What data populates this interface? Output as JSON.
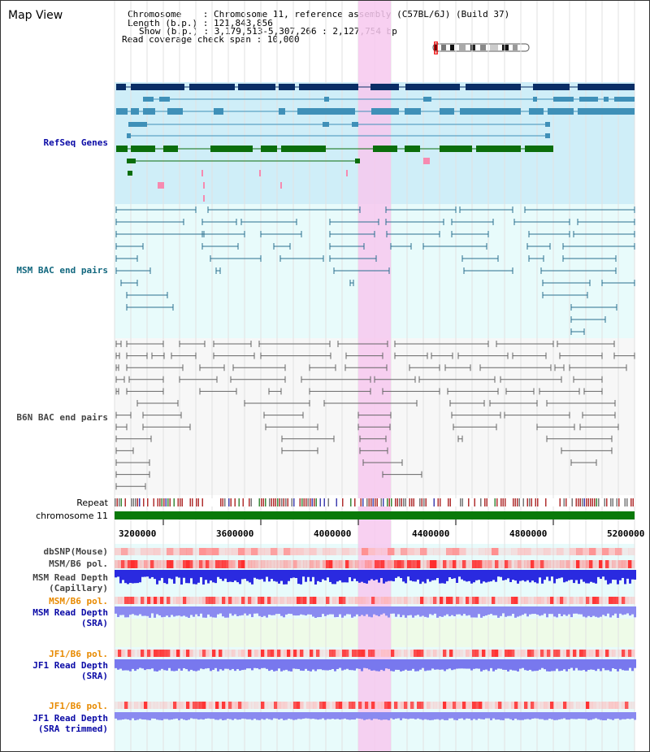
{
  "title": "Map View",
  "info": {
    "chromosome_label": "Chromosome",
    "chromosome_value": "Chromosome 11, reference assembly (C57BL/6J) (Build 37)",
    "length_label": "Length (b.p.)",
    "length_value": "121,843,856",
    "show_label": "Show (b.p.)",
    "show_value": "3,179,513-5,307,266 : 2,127,754 bp",
    "coverage_label": "Read coverage check span",
    "coverage_value": "10,000"
  },
  "tracks": {
    "refseq": "RefSeq Genes",
    "msm_bac": "MSM BAC end pairs",
    "b6n_bac": "B6N BAC end pairs",
    "repeat": "Repeat",
    "chromosome": "chromosome 11",
    "dbsnp": "dbSNP(Mouse)",
    "msm_b6_pol": "MSM/B6 pol.",
    "msm_read_depth_cap_1": "MSM Read Depth",
    "msm_read_depth_cap_2": "(Capillary)",
    "msm_b6_pol_2": "MSM/B6 pol.",
    "msm_read_depth_sra_1": "MSM Read Depth",
    "msm_read_depth_sra_2": "(SRA)",
    "jf1_b6_pol": "JF1/B6 pol.",
    "jf1_read_depth_sra_1": "JF1 Read Depth",
    "jf1_read_depth_sra_2": "(SRA)",
    "jf1_b6_pol_2": "JF1/B6 pol.",
    "jf1_read_depth_trim_1": "JF1 Read Depth",
    "jf1_read_depth_trim_2": "(SRA trimmed)"
  },
  "axis": {
    "ticks": [
      "3200000",
      "3600000",
      "4000000",
      "4400000",
      "4800000",
      "5200000"
    ]
  },
  "colors": {
    "refseq_bg": "#cfeef8",
    "bac_bg": "#e8fbfb",
    "highlight": "#f7c8ef",
    "gene_dark": "#0a2e66",
    "gene_mid": "#3f90b8",
    "gene_green": "#0b6e0b",
    "msm_bac": "#2a6f8f",
    "b6n_bac": "#666666",
    "chromosome": "#0a7a0a",
    "label_blue": "#0a0aa6",
    "label_teal": "#11677e",
    "label_orange": "#e88a00",
    "label_gray": "#444444"
  }
}
